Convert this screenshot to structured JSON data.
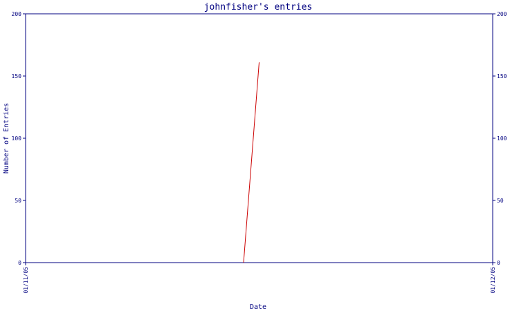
{
  "chart_data": {
    "type": "line",
    "title": "johnfisher's entries",
    "xlabel": "Date",
    "ylabel": "Number of Entries",
    "x_ticks": [
      "01/11/05",
      "01/12/05"
    ],
    "y_ticks": [
      0,
      50,
      100,
      150,
      200
    ],
    "ylim": [
      0,
      200
    ],
    "y_axis_right": true,
    "grid": false,
    "series": [
      {
        "color": "#cc0000",
        "points": [
          {
            "x": "2005-11-15",
            "y": 0
          },
          {
            "x": "2005-11-16",
            "y": 161
          }
        ]
      }
    ],
    "x_start": "2005-11-01",
    "x_end": "2005-12-01"
  },
  "colors": {
    "axis": "#000080",
    "text": "#000080",
    "line": "#cc0000"
  }
}
